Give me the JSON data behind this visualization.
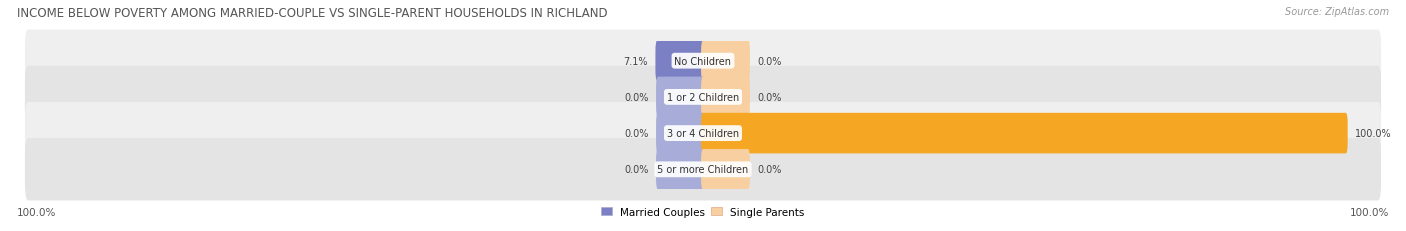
{
  "title": "INCOME BELOW POVERTY AMONG MARRIED-COUPLE VS SINGLE-PARENT HOUSEHOLDS IN RICHLAND",
  "source": "Source: ZipAtlas.com",
  "categories": [
    "No Children",
    "1 or 2 Children",
    "3 or 4 Children",
    "5 or more Children"
  ],
  "married_values": [
    7.1,
    0.0,
    0.0,
    0.0
  ],
  "single_values": [
    0.0,
    0.0,
    100.0,
    0.0
  ],
  "married_color_full": "#7b7fc4",
  "married_color_stub": "#a8acd8",
  "single_color_full": "#f5a623",
  "single_color_stub": "#f8cfa0",
  "row_bg_odd": "#efefef",
  "row_bg_even": "#e4e4e4",
  "axis_max": 100,
  "married_label": "Married Couples",
  "single_label": "Single Parents",
  "left_axis_label": "100.0%",
  "right_axis_label": "100.0%",
  "title_fontsize": 8.5,
  "source_fontsize": 7,
  "label_fontsize": 7.5,
  "category_fontsize": 7,
  "value_fontsize": 7,
  "background_color": "#ffffff"
}
